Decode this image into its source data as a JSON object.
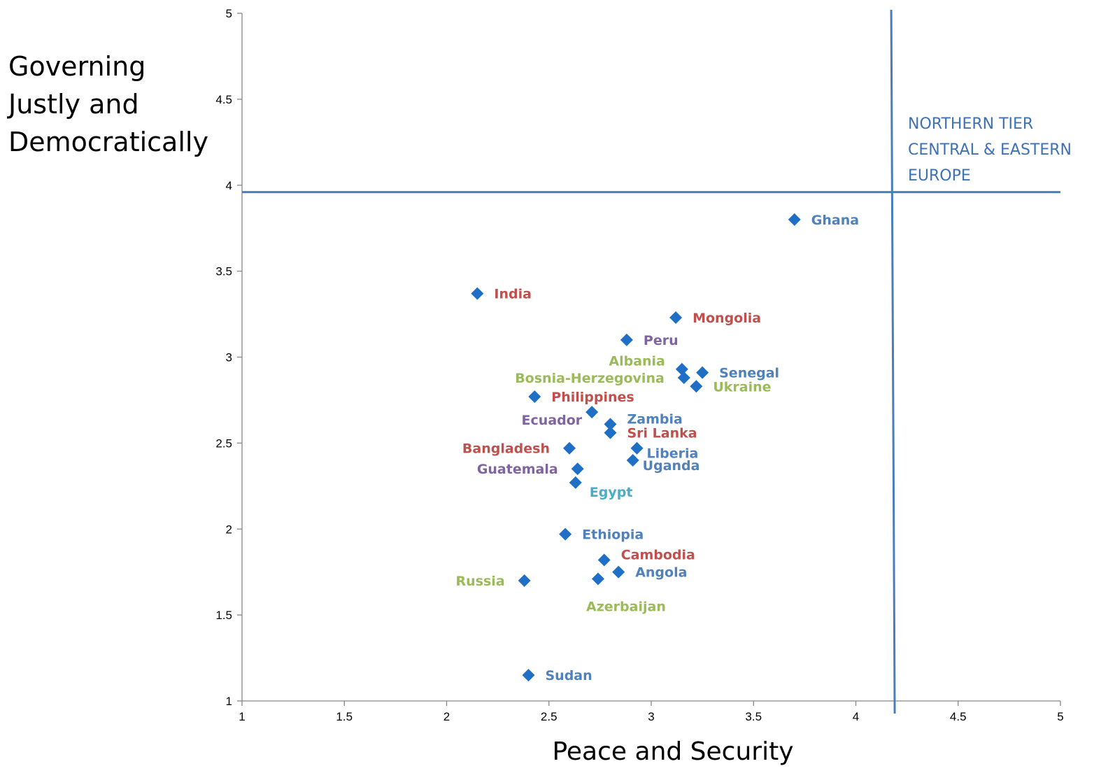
{
  "chart_data": {
    "type": "scatter",
    "title": "",
    "xlabel": "Peace and Security",
    "ylabel_lines": [
      "Governing",
      "Justly and",
      "Democratically"
    ],
    "xlim": [
      1,
      5
    ],
    "ylim": [
      1,
      5
    ],
    "xticks": [
      "1",
      "1.5",
      "2",
      "2.5",
      "3",
      "3.5",
      "4",
      "4.5",
      "5"
    ],
    "yticks": [
      "1",
      "1.5",
      "2",
      "2.5",
      "3",
      "3.5",
      "4",
      "4.5",
      "5"
    ],
    "grid": false,
    "marker_color": "#1f6fc6",
    "reference_lines": {
      "x": 4.19,
      "y": 3.96,
      "color": "#4a7ebb"
    },
    "region_label_lines": [
      "NORTHERN TIER",
      "CENTRAL & EASTERN",
      "EUROPE"
    ],
    "label_colors": {
      "blue": "#4f81bd",
      "red": "#c0504d",
      "green": "#9bbb59",
      "purple": "#8064a2",
      "teal": "#4bacc6"
    },
    "points": [
      {
        "label": "Ghana",
        "x": 3.7,
        "y": 3.8,
        "color": "blue",
        "pos": "right"
      },
      {
        "label": "India",
        "x": 2.15,
        "y": 3.37,
        "color": "red",
        "pos": "right"
      },
      {
        "label": "Mongolia",
        "x": 3.12,
        "y": 3.23,
        "color": "red",
        "pos": "right"
      },
      {
        "label": "Peru",
        "x": 2.88,
        "y": 3.1,
        "color": "purple",
        "pos": "right"
      },
      {
        "label": "Albania",
        "x": 3.15,
        "y": 2.93,
        "color": "green",
        "pos": "left-up"
      },
      {
        "label": "Senegal",
        "x": 3.25,
        "y": 2.91,
        "color": "blue",
        "pos": "right"
      },
      {
        "label": "Bosnia-Herzegovina",
        "x": 3.16,
        "y": 2.88,
        "color": "green",
        "pos": "left"
      },
      {
        "label": "Ukraine",
        "x": 3.22,
        "y": 2.83,
        "color": "green",
        "pos": "right"
      },
      {
        "label": "Philippines",
        "x": 2.43,
        "y": 2.77,
        "color": "red",
        "pos": "right"
      },
      {
        "label": "Ecuador",
        "x": 2.71,
        "y": 2.68,
        "color": "purple",
        "pos": "left-down"
      },
      {
        "label": "Zambia",
        "x": 2.8,
        "y": 2.61,
        "color": "blue",
        "pos": "right-up"
      },
      {
        "label": "Sri Lanka",
        "x": 2.8,
        "y": 2.56,
        "color": "red",
        "pos": "right"
      },
      {
        "label": "Bangladesh",
        "x": 2.6,
        "y": 2.47,
        "color": "red",
        "pos": "left"
      },
      {
        "label": "Liberia",
        "x": 2.93,
        "y": 2.47,
        "color": "blue",
        "pos": "right-down"
      },
      {
        "label": "Uganda",
        "x": 2.91,
        "y": 2.4,
        "color": "blue",
        "pos": "right-down"
      },
      {
        "label": "Guatemala",
        "x": 2.64,
        "y": 2.35,
        "color": "purple",
        "pos": "left"
      },
      {
        "label": "Egypt",
        "x": 2.63,
        "y": 2.27,
        "color": "teal",
        "pos": "below-right"
      },
      {
        "label": "Ethiopia",
        "x": 2.58,
        "y": 1.97,
        "color": "blue",
        "pos": "right"
      },
      {
        "label": "Cambodia",
        "x": 2.77,
        "y": 1.82,
        "color": "red",
        "pos": "right-up"
      },
      {
        "label": "Angola",
        "x": 2.84,
        "y": 1.75,
        "color": "blue",
        "pos": "right"
      },
      {
        "label": "Azerbaijan",
        "x": 2.74,
        "y": 1.71,
        "color": "green",
        "pos": "below"
      },
      {
        "label": "Russia",
        "x": 2.38,
        "y": 1.7,
        "color": "green",
        "pos": "left"
      },
      {
        "label": "Sudan",
        "x": 2.4,
        "y": 1.15,
        "color": "blue",
        "pos": "right"
      }
    ]
  }
}
